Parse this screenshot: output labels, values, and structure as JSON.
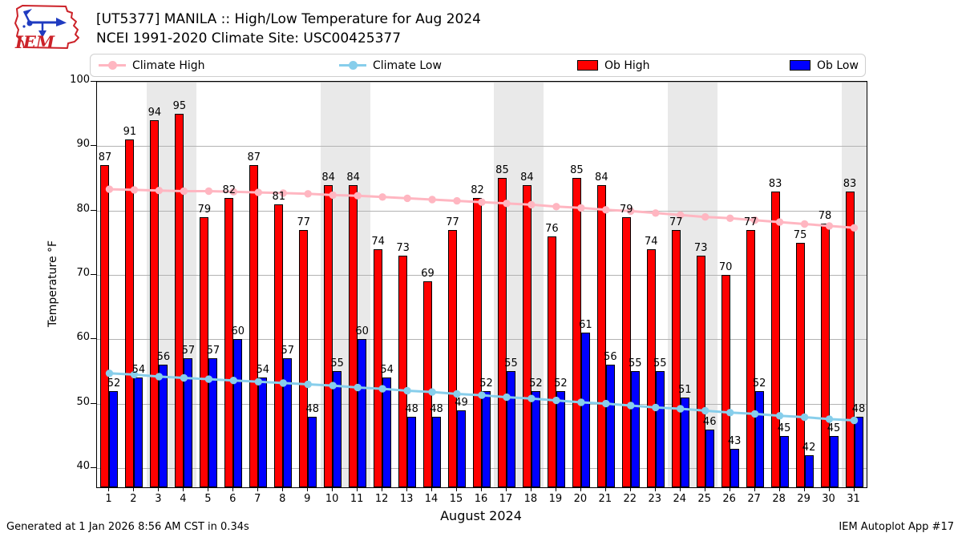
{
  "header": {
    "logo_text": "IEM"
  },
  "legend": {
    "items": [
      {
        "label": "Climate High",
        "type": "line",
        "color": "#FFB6C1"
      },
      {
        "label": "Climate Low",
        "type": "line",
        "color": "#87CEEB"
      },
      {
        "label": "Ob High",
        "type": "patch",
        "color": "#FF0000"
      },
      {
        "label": "Ob Low",
        "type": "patch",
        "color": "#0000FF"
      }
    ]
  },
  "chart_data": {
    "type": "bar",
    "title": "[UT5377] MANILA :: High/Low Temperature for Aug 2024",
    "subtitle": "NCEI 1991-2020 Climate Site: USC00425377",
    "xlabel": "August 2024",
    "ylabel": "Temperature °F",
    "ylim": [
      37,
      100
    ],
    "yticks": [
      40,
      50,
      60,
      70,
      80,
      90,
      100
    ],
    "x": [
      1,
      2,
      3,
      4,
      5,
      6,
      7,
      8,
      9,
      10,
      11,
      12,
      13,
      14,
      15,
      16,
      17,
      18,
      19,
      20,
      21,
      22,
      23,
      24,
      25,
      26,
      27,
      28,
      29,
      30,
      31
    ],
    "series": [
      {
        "name": "Ob High",
        "type": "bar",
        "color": "#FF0000",
        "values": [
          87,
          91,
          94,
          95,
          79,
          82,
          87,
          81,
          77,
          84,
          84,
          74,
          73,
          69,
          77,
          82,
          85,
          84,
          76,
          85,
          84,
          79,
          74,
          77,
          73,
          70,
          77,
          83,
          75,
          78,
          83
        ]
      },
      {
        "name": "Ob Low",
        "type": "bar",
        "color": "#0000FF",
        "values": [
          52,
          54,
          56,
          57,
          57,
          60,
          54,
          57,
          48,
          55,
          60,
          54,
          48,
          48,
          49,
          52,
          55,
          52,
          52,
          61,
          56,
          55,
          55,
          51,
          46,
          43,
          52,
          45,
          42,
          45,
          48
        ]
      },
      {
        "name": "Climate High",
        "type": "line",
        "color": "#FFB6C1",
        "values": [
          83.3,
          83.2,
          83.1,
          83.0,
          83.0,
          82.9,
          82.8,
          82.7,
          82.6,
          82.4,
          82.3,
          82.1,
          81.9,
          81.7,
          81.5,
          81.3,
          81.1,
          80.9,
          80.6,
          80.4,
          80.1,
          79.9,
          79.6,
          79.3,
          79.0,
          78.8,
          78.5,
          78.2,
          77.9,
          77.6,
          77.3
        ]
      },
      {
        "name": "Climate Low",
        "type": "line",
        "color": "#87CEEB",
        "values": [
          54.7,
          54.5,
          54.2,
          54.0,
          53.8,
          53.6,
          53.4,
          53.2,
          53.0,
          52.8,
          52.5,
          52.3,
          52.0,
          51.8,
          51.5,
          51.3,
          51.0,
          50.8,
          50.5,
          50.2,
          50.0,
          49.7,
          49.4,
          49.2,
          48.9,
          48.6,
          48.4,
          48.1,
          47.9,
          47.6,
          47.4
        ]
      }
    ],
    "weekend_shading_days": [
      3,
      4,
      10,
      11,
      17,
      18,
      24,
      25,
      31
    ],
    "grid": true,
    "legend_position": "top",
    "bar_value_labels": true
  },
  "footer": {
    "left": "Generated at 1 Jan 2026 8:56 AM CST in 0.34s",
    "right": "IEM Autoplot App #17"
  }
}
